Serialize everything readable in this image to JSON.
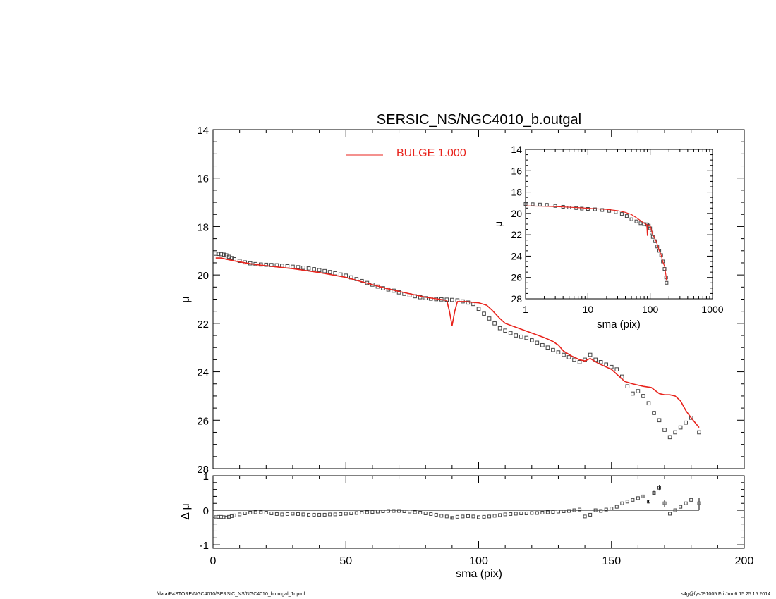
{
  "chart_data": [
    {
      "id": "main",
      "type": "scatter",
      "title": "SERSIC_NS/NGC4010_b.outgal",
      "xlabel": "",
      "ylabel": "μ",
      "xlim": [
        0,
        200
      ],
      "ylim": [
        28,
        14
      ],
      "yticks": [
        "14",
        "16",
        "18",
        "20",
        "22",
        "24",
        "26",
        "28"
      ],
      "legend": {
        "label": "BULGE  1.000",
        "placement": "top-center",
        "color": "#e8231c"
      },
      "colors": {
        "data": "#444444",
        "model": "#e8231c"
      },
      "series": [
        {
          "name": "data",
          "x": [
            1,
            2,
            3,
            4,
            5,
            6,
            7,
            8,
            10,
            12,
            14,
            16,
            18,
            20,
            22,
            24,
            26,
            28,
            30,
            32,
            34,
            36,
            38,
            40,
            42,
            44,
            46,
            48,
            50,
            52,
            54,
            56,
            58,
            60,
            62,
            64,
            66,
            68,
            70,
            72,
            74,
            76,
            78,
            80,
            82,
            84,
            86,
            88,
            90,
            92,
            94,
            96,
            98,
            100,
            102,
            104,
            106,
            108,
            110,
            112,
            114,
            116,
            118,
            120,
            122,
            124,
            126,
            128,
            130,
            132,
            134,
            136,
            138,
            140,
            142,
            144,
            146,
            148,
            150,
            152,
            154,
            156,
            158,
            160,
            162,
            164,
            166,
            168,
            170,
            172,
            174,
            176,
            178,
            180,
            183
          ],
          "y": [
            19.12,
            19.13,
            19.14,
            19.16,
            19.19,
            19.25,
            19.3,
            19.35,
            19.42,
            19.48,
            19.52,
            19.55,
            19.57,
            19.58,
            19.59,
            19.6,
            19.62,
            19.64,
            19.66,
            19.68,
            19.7,
            19.73,
            19.76,
            19.8,
            19.84,
            19.88,
            19.93,
            19.98,
            20.03,
            20.1,
            20.17,
            20.25,
            20.33,
            20.4,
            20.48,
            20.55,
            20.6,
            20.65,
            20.72,
            20.78,
            20.84,
            20.88,
            20.92,
            20.96,
            20.98,
            21,
            21.01,
            21.02,
            21.03,
            21.05,
            21.09,
            21.14,
            21.2,
            21.4,
            21.6,
            21.8,
            22.0,
            22.2,
            22.3,
            22.4,
            22.5,
            22.55,
            22.6,
            22.7,
            22.8,
            22.9,
            23.0,
            23.1,
            23.2,
            23.3,
            23.4,
            23.5,
            23.6,
            23.5,
            23.3,
            23.5,
            23.6,
            23.7,
            23.8,
            23.9,
            24.2,
            24.6,
            24.9,
            24.8,
            25.0,
            25.3,
            25.7,
            26.0,
            26.4,
            26.7,
            26.5,
            26.3,
            26.1,
            25.9,
            26.5
          ]
        },
        {
          "name": "model",
          "x": [
            1,
            3,
            5,
            8,
            12,
            16,
            20,
            25,
            30,
            35,
            40,
            45,
            50,
            55,
            60,
            65,
            70,
            75,
            80,
            85,
            88,
            89,
            90,
            91,
            92,
            95,
            100,
            103,
            105,
            108,
            110,
            115,
            120,
            125,
            128,
            130,
            132,
            135,
            138,
            140,
            142,
            145,
            150,
            152,
            155,
            158,
            160,
            162,
            165,
            168,
            170,
            172,
            174,
            176,
            178,
            180,
            183
          ],
          "y": [
            19.3,
            19.3,
            19.35,
            19.42,
            19.5,
            19.57,
            19.62,
            19.68,
            19.74,
            19.82,
            19.9,
            20.0,
            20.1,
            20.25,
            20.4,
            20.55,
            20.68,
            20.8,
            20.92,
            21.0,
            21.05,
            21.5,
            22.1,
            21.5,
            21.1,
            21.1,
            21.15,
            21.25,
            21.45,
            21.8,
            22.0,
            22.2,
            22.4,
            22.6,
            22.75,
            22.9,
            23.15,
            23.35,
            23.5,
            23.55,
            23.45,
            23.65,
            23.9,
            24.1,
            24.4,
            24.5,
            24.55,
            24.6,
            24.65,
            24.9,
            24.95,
            24.95,
            25.0,
            25.2,
            25.6,
            25.9,
            26.3
          ]
        }
      ]
    },
    {
      "id": "inset",
      "type": "scatter",
      "title": "",
      "xlabel": "sma (pix)",
      "ylabel": "μ",
      "xscale": "log",
      "xlim": [
        1,
        1000
      ],
      "ylim": [
        28,
        14
      ],
      "xticks": [
        "1",
        "10",
        "100",
        "1000"
      ],
      "yticks": [
        "14",
        "16",
        "18",
        "20",
        "22",
        "24",
        "26",
        "28"
      ],
      "series": [
        {
          "name": "data",
          "x": [
            1,
            1.3,
            1.7,
            2.2,
            3,
            4,
            5,
            6.5,
            8,
            10,
            13,
            17,
            22,
            28,
            35,
            42,
            50,
            60,
            70,
            80,
            88,
            90,
            95,
            100,
            105,
            110,
            120,
            130,
            140,
            150,
            160,
            170,
            180,
            183
          ],
          "y": [
            19.12,
            19.14,
            19.17,
            19.2,
            19.3,
            19.38,
            19.45,
            19.5,
            19.55,
            19.58,
            19.62,
            19.68,
            19.76,
            19.88,
            20.05,
            20.25,
            20.55,
            20.75,
            20.92,
            21.0,
            21.02,
            21.05,
            21.15,
            21.4,
            21.8,
            22.2,
            22.6,
            23.1,
            23.5,
            23.9,
            24.5,
            25.2,
            26.0,
            26.5
          ]
        },
        {
          "name": "model",
          "x": [
            1,
            2,
            3,
            5,
            8,
            12,
            20,
            30,
            40,
            50,
            60,
            70,
            80,
            85,
            88,
            89,
            90,
            91,
            92,
            95,
            100,
            110,
            120,
            130,
            140,
            150,
            160,
            170,
            180,
            183
          ],
          "y": [
            19.3,
            19.33,
            19.36,
            19.42,
            19.48,
            19.55,
            19.62,
            19.74,
            19.9,
            20.1,
            20.4,
            20.68,
            20.92,
            21.0,
            21.05,
            21.5,
            22.1,
            21.5,
            21.1,
            21.1,
            21.15,
            22.0,
            22.4,
            22.9,
            23.5,
            23.9,
            24.55,
            24.95,
            25.9,
            26.3
          ]
        }
      ]
    },
    {
      "id": "residual",
      "type": "scatter",
      "title": "",
      "xlabel": "sma (pix)",
      "ylabel": "Δ μ",
      "xlim": [
        0,
        200
      ],
      "ylim": [
        -1.1,
        1.0
      ],
      "xticks": [
        "0",
        "50",
        "100",
        "150",
        "200"
      ],
      "yticks": [
        "1",
        "0",
        "-1"
      ],
      "zero_line": true,
      "series": [
        {
          "name": "residual",
          "x": [
            1,
            2,
            3,
            4,
            5,
            6,
            7,
            8,
            10,
            12,
            14,
            16,
            18,
            20,
            22,
            24,
            26,
            28,
            30,
            32,
            34,
            36,
            38,
            40,
            42,
            44,
            46,
            48,
            50,
            52,
            54,
            56,
            58,
            60,
            62,
            64,
            66,
            68,
            70,
            72,
            74,
            76,
            78,
            80,
            82,
            84,
            86,
            88,
            90,
            92,
            94,
            96,
            98,
            100,
            102,
            104,
            106,
            108,
            110,
            112,
            114,
            116,
            118,
            120,
            122,
            124,
            126,
            128,
            130,
            132,
            134,
            136,
            138,
            140,
            142,
            144,
            146,
            148,
            150,
            152,
            154,
            156,
            158,
            160,
            162,
            164,
            166,
            168,
            170,
            172,
            174,
            176,
            178,
            180,
            183
          ],
          "y": [
            -0.2,
            -0.19,
            -0.19,
            -0.2,
            -0.21,
            -0.19,
            -0.17,
            -0.15,
            -0.12,
            -0.09,
            -0.07,
            -0.06,
            -0.06,
            -0.07,
            -0.09,
            -0.11,
            -0.12,
            -0.11,
            -0.1,
            -0.11,
            -0.12,
            -0.13,
            -0.13,
            -0.13,
            -0.13,
            -0.12,
            -0.12,
            -0.11,
            -0.1,
            -0.09,
            -0.08,
            -0.07,
            -0.06,
            -0.05,
            -0.04,
            -0.03,
            -0.02,
            -0.02,
            -0.02,
            -0.03,
            -0.04,
            -0.06,
            -0.07,
            -0.09,
            -0.11,
            -0.13,
            -0.16,
            -0.18,
            -0.22,
            -0.19,
            -0.18,
            -0.17,
            -0.18,
            -0.2,
            -0.19,
            -0.18,
            -0.16,
            -0.14,
            -0.12,
            -0.11,
            -0.1,
            -0.09,
            -0.09,
            -0.08,
            -0.08,
            -0.07,
            -0.06,
            -0.05,
            -0.04,
            -0.03,
            -0.02,
            0.0,
            0.02,
            -0.18,
            -0.13,
            0.0,
            -0.02,
            0.02,
            0.05,
            0.1,
            0.2,
            0.25,
            0.3,
            0.35,
            0.4,
            0.25,
            0.5,
            0.65,
            0.2,
            -0.1,
            0.0,
            0.1,
            0.2,
            0.3,
            0.2
          ],
          "errors": [
            0,
            0,
            0,
            0,
            0,
            0,
            0,
            0,
            0,
            0,
            0,
            0,
            0,
            0,
            0,
            0,
            0,
            0,
            0,
            0,
            0,
            0,
            0,
            0,
            0,
            0,
            0,
            0,
            0,
            0,
            0,
            0,
            0,
            0,
            0,
            0,
            0,
            0,
            0,
            0,
            0,
            0,
            0,
            0,
            0,
            0,
            0,
            0,
            0.05,
            0,
            0,
            0,
            0,
            0,
            0,
            0,
            0,
            0,
            0,
            0,
            0,
            0,
            0,
            0,
            0,
            0,
            0,
            0,
            0,
            0,
            0,
            0,
            0,
            0,
            0,
            0,
            0,
            0,
            0,
            0,
            0,
            0,
            0,
            0,
            0.05,
            0.05,
            0.06,
            0.08,
            0.1,
            0,
            0,
            0,
            0,
            0,
            0.12
          ]
        }
      ]
    }
  ],
  "footer": {
    "left": "/data/P4STORE/NGC4010/SERSIC_NS/NGC4010_b.outgal_1dprof",
    "right": "s4g@fys091005  Fri Jun  6 15:25:15 2014"
  }
}
